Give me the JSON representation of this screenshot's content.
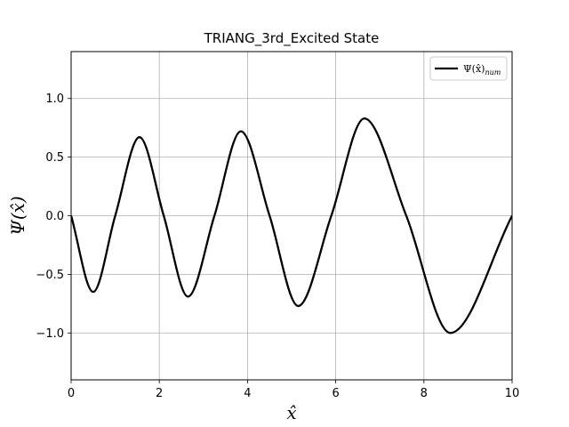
{
  "chart_data": {
    "type": "line",
    "title": "TRIANG_3rd_Excited State",
    "xlabel": "x̂",
    "ylabel": "Ψ(x̂)",
    "xlim": [
      0,
      10
    ],
    "ylim": [
      -1.4,
      1.4
    ],
    "xticks": [
      0,
      2,
      4,
      6,
      8,
      10
    ],
    "xtick_labels": [
      "0",
      "2",
      "4",
      "6",
      "8",
      "10"
    ],
    "yticks": [
      -1.0,
      -0.5,
      0.0,
      0.5,
      1.0
    ],
    "ytick_labels": [
      "−1.0",
      "−0.5",
      "0.0",
      "0.5",
      "1.0"
    ],
    "grid": true,
    "legend_position": "top-right",
    "series": [
      {
        "name": "Ψ(x̂)num",
        "color": "#000000",
        "x": [
          0,
          0.5,
          1.0,
          1.55,
          2.1,
          2.65,
          3.25,
          3.85,
          4.5,
          5.15,
          5.9,
          6.65,
          7.6,
          8.6,
          10.0
        ],
        "y": [
          0,
          -0.65,
          0,
          0.67,
          0,
          -0.69,
          0,
          0.72,
          0,
          -0.77,
          0,
          0.83,
          0,
          -1.0,
          0
        ]
      }
    ]
  }
}
